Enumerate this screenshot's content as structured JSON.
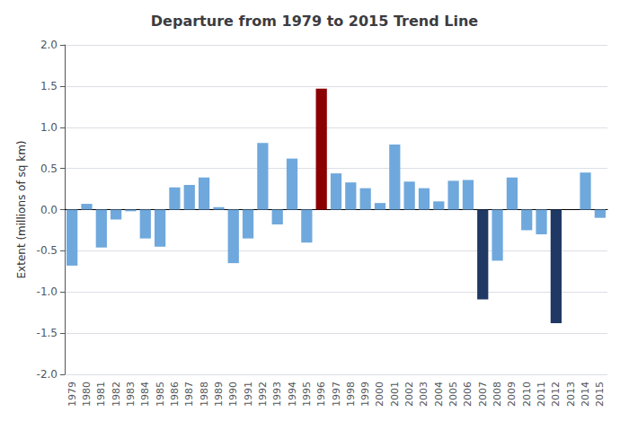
{
  "chart_data": {
    "type": "bar",
    "title": "Departure from 1979 to 2015 Trend Line",
    "ylabel": "Extent (millions of sq km)",
    "categories": [
      "1979",
      "1980",
      "1981",
      "1982",
      "1983",
      "1984",
      "1985",
      "1986",
      "1987",
      "1988",
      "1989",
      "1990",
      "1991",
      "1992",
      "1993",
      "1994",
      "1995",
      "1996",
      "1997",
      "1998",
      "1999",
      "2000",
      "2001",
      "2002",
      "2003",
      "2004",
      "2005",
      "2006",
      "2007",
      "2008",
      "2009",
      "2010",
      "2011",
      "2012",
      "2013",
      "2014",
      "2015"
    ],
    "values": [
      -0.68,
      0.07,
      -0.46,
      -0.12,
      -0.02,
      -0.35,
      -0.45,
      0.27,
      0.3,
      0.39,
      0.03,
      -0.65,
      -0.35,
      0.81,
      -0.18,
      0.62,
      -0.4,
      1.47,
      0.44,
      0.33,
      0.26,
      0.08,
      0.79,
      0.34,
      0.26,
      0.1,
      0.35,
      0.36,
      -1.09,
      -0.62,
      0.39,
      -0.25,
      -0.3,
      -1.38,
      0.0,
      0.45,
      -0.1
    ],
    "colors": [
      "#6fa8dc",
      "#6fa8dc",
      "#6fa8dc",
      "#6fa8dc",
      "#6fa8dc",
      "#6fa8dc",
      "#6fa8dc",
      "#6fa8dc",
      "#6fa8dc",
      "#6fa8dc",
      "#6fa8dc",
      "#6fa8dc",
      "#6fa8dc",
      "#6fa8dc",
      "#6fa8dc",
      "#6fa8dc",
      "#6fa8dc",
      "#8b0000",
      "#6fa8dc",
      "#6fa8dc",
      "#6fa8dc",
      "#6fa8dc",
      "#6fa8dc",
      "#6fa8dc",
      "#6fa8dc",
      "#6fa8dc",
      "#6fa8dc",
      "#6fa8dc",
      "#1f3864",
      "#6fa8dc",
      "#6fa8dc",
      "#6fa8dc",
      "#6fa8dc",
      "#1f3864",
      "#6fa8dc",
      "#6fa8dc",
      "#6fa8dc"
    ],
    "ylim": [
      -2.0,
      2.0
    ],
    "yticks": [
      {
        "value": -2.0,
        "label": "-2.0"
      },
      -1.5,
      {
        "value": -1.0,
        "label": "-1.0"
      },
      -0.5,
      {
        "value": 0.0,
        "label": "0.0"
      },
      0.5,
      {
        "value": 1.0,
        "label": "1.0"
      },
      1.5,
      {
        "value": 2.0,
        "label": "2.0"
      }
    ],
    "grid": true
  }
}
